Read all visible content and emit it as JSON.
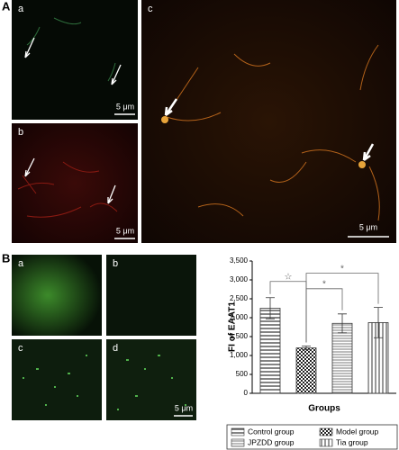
{
  "panels": {
    "A": {
      "label": "A",
      "subpanels": [
        {
          "label": "a",
          "scale_bar": "5 μm"
        },
        {
          "label": "b",
          "scale_bar": "5 μm"
        },
        {
          "label": "c",
          "scale_bar": "5 μm"
        }
      ]
    },
    "B": {
      "label": "B",
      "subpanels": [
        {
          "label": "a"
        },
        {
          "label": "b"
        },
        {
          "label": "c"
        },
        {
          "label": "d",
          "scale_bar": "5 μm"
        }
      ]
    }
  },
  "chart_data": {
    "type": "bar",
    "y_label": "FI of EAAT1",
    "x_label": "Groups",
    "ylim": [
      0,
      3500
    ],
    "yticks": [
      0,
      500,
      {
        "value": 1000,
        "label": "1,000"
      },
      {
        "value": 1500,
        "label": "1,500"
      },
      {
        "value": 2000,
        "label": "2,000"
      },
      {
        "value": 2500,
        "label": "2,500"
      },
      {
        "value": 3000,
        "label": "3,000"
      },
      {
        "value": 3500,
        "label": "3,500"
      }
    ],
    "series": [
      {
        "name": "Control group",
        "pattern": "horizontal",
        "values": [
          2250
        ],
        "errors": [
          280
        ]
      },
      {
        "name": "Model group",
        "pattern": "check",
        "values": [
          1200
        ],
        "errors": [
          50
        ]
      },
      {
        "name": "JPZDD group",
        "pattern": "dense-horizontal",
        "values": [
          1850
        ],
        "errors": [
          250
        ]
      },
      {
        "name": "Tia group",
        "pattern": "vertical",
        "values": [
          1870
        ],
        "errors": [
          400
        ]
      }
    ],
    "annotations": [
      {
        "text": "☆",
        "between": [
          0,
          1
        ]
      },
      {
        "text": "*",
        "between": [
          1,
          2
        ]
      },
      {
        "text": "*",
        "between": [
          1,
          3
        ]
      }
    ]
  }
}
